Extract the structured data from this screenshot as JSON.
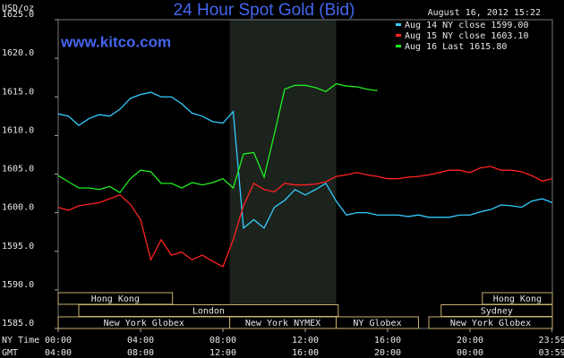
{
  "chart_data": {
    "type": "line",
    "title": "24 Hour Spot Gold (Bid)",
    "timestamp": "August 16, 2012 15:22",
    "source": "www.kitco.com",
    "y_label": "USD/oz",
    "x_label": "NY Time",
    "x2_label": "GMT",
    "x": [
      0,
      0.5,
      1,
      1.5,
      2,
      2.5,
      3,
      3.5,
      4,
      4.5,
      5,
      5.5,
      6,
      6.5,
      7,
      7.5,
      8,
      8.5,
      9,
      9.5,
      10,
      10.5,
      11,
      11.5,
      12,
      12.5,
      13,
      13.5,
      14,
      14.5,
      15,
      15.5,
      16,
      16.5,
      17,
      17.5,
      18,
      18.5,
      19,
      19.5,
      20,
      20.5,
      21,
      21.5,
      22,
      22.5,
      23,
      23.5,
      24
    ],
    "series": [
      {
        "name": "Aug 14 NY close 1599.00",
        "color": "#33ccff",
        "values": [
          1612.8,
          1612.5,
          1611.3,
          1612.2,
          1612.7,
          1612.5,
          1613.4,
          1614.8,
          1615.3,
          1615.6,
          1615.0,
          1615.0,
          1614.1,
          1612.9,
          1612.5,
          1611.8,
          1611.6,
          1613.1,
          1598.0,
          1599.1,
          1598.0,
          1600.7,
          1601.6,
          1603.0,
          1602.3,
          1603.0,
          1603.8,
          1601.5,
          1599.7,
          1600.0,
          1600.0,
          1599.7,
          1599.7,
          1599.7,
          1599.5,
          1599.7,
          1599.4,
          1599.4,
          1599.4,
          1599.7,
          1599.7,
          1600.1,
          1600.4,
          1601.0,
          1600.9,
          1600.7,
          1601.5,
          1601.8,
          1601.3
        ]
      },
      {
        "name": "Aug 15 NY close 1603.10",
        "color": "#ff2222",
        "values": [
          1600.7,
          1600.3,
          1600.9,
          1601.1,
          1601.3,
          1601.8,
          1602.3,
          1601.1,
          1599.1,
          1593.9,
          1596.5,
          1594.5,
          1594.9,
          1593.9,
          1594.5,
          1593.7,
          1593.0,
          1596.5,
          1600.9,
          1603.8,
          1603.0,
          1602.7,
          1603.8,
          1603.6,
          1603.6,
          1603.7,
          1604.0,
          1604.7,
          1604.9,
          1605.2,
          1604.9,
          1604.7,
          1604.4,
          1604.4,
          1604.6,
          1604.7,
          1604.9,
          1605.2,
          1605.5,
          1605.5,
          1605.2,
          1605.8,
          1606.0,
          1605.5,
          1605.5,
          1605.3,
          1604.8,
          1604.1,
          1604.4
        ]
      },
      {
        "name": "Aug 16 Last 1615.80",
        "color": "#22ee22",
        "values": [
          1604.8,
          1604.0,
          1603.2,
          1603.2,
          1603.0,
          1603.4,
          1602.6,
          1604.4,
          1605.5,
          1605.3,
          1603.8,
          1603.8,
          1603.2,
          1603.9,
          1603.6,
          1603.9,
          1604.4,
          1603.2,
          1607.6,
          1607.8,
          1604.6,
          1610.2,
          1616.0,
          1616.5,
          1616.5,
          1616.2,
          1615.7,
          1616.7,
          1616.4,
          1616.3,
          1616.0,
          1615.8,
          null,
          null,
          null,
          null,
          null,
          null,
          null,
          null,
          null,
          null,
          null,
          null,
          null,
          null,
          null,
          null,
          null
        ]
      }
    ],
    "xlim": [
      0,
      24
    ],
    "xticks": [
      {
        "value": 0,
        "label": "00:00"
      },
      {
        "value": 4,
        "label": "04:00"
      },
      {
        "value": 8,
        "label": "08:00"
      },
      {
        "value": 12,
        "label": "12:00"
      },
      {
        "value": 16,
        "label": "16:00"
      },
      {
        "value": 20,
        "label": "20:00"
      },
      {
        "value": 23.983,
        "label": "23:59"
      }
    ],
    "x2ticks": [
      "04:00",
      "08:00",
      "12:00",
      "16:00",
      "20:00",
      "00:00",
      "03:59"
    ],
    "ylim": [
      1585,
      1625
    ],
    "yticks": [
      {
        "value": 1585,
        "label": "1585.0"
      },
      {
        "value": 1590,
        "label": "1590.0"
      },
      {
        "value": 1595,
        "label": "1595.0"
      },
      {
        "value": 1600,
        "label": "1600.0"
      },
      {
        "value": 1605,
        "label": "1605.0"
      },
      {
        "value": 1610,
        "label": "1610.0"
      },
      {
        "value": 1615,
        "label": "1615.0"
      },
      {
        "value": 1620,
        "label": "1620.0"
      },
      {
        "value": 1625,
        "label": "1625.0"
      }
    ],
    "highlight_x": [
      8.33,
      13.5
    ],
    "sessions": [
      {
        "label": "Hong Kong",
        "start": 0,
        "end": 5.55,
        "row": 0
      },
      {
        "label": "Hong Kong",
        "start": 20.6,
        "end": 24,
        "row": 0
      },
      {
        "label": "London",
        "start": 1,
        "end": 13.6,
        "row": 1
      },
      {
        "label": "Sydney",
        "start": 18.6,
        "end": 24,
        "row": 1
      },
      {
        "label": "New York Globex",
        "start": 0,
        "end": 8.33,
        "row": 2
      },
      {
        "label": "New York NYMEX",
        "start": 8.33,
        "end": 13.5,
        "row": 2
      },
      {
        "label": "NY Globex",
        "start": 13.5,
        "end": 17.5,
        "row": 2
      },
      {
        "label": "New York Globex",
        "start": 18,
        "end": 24,
        "row": 2
      }
    ],
    "grid": false
  }
}
